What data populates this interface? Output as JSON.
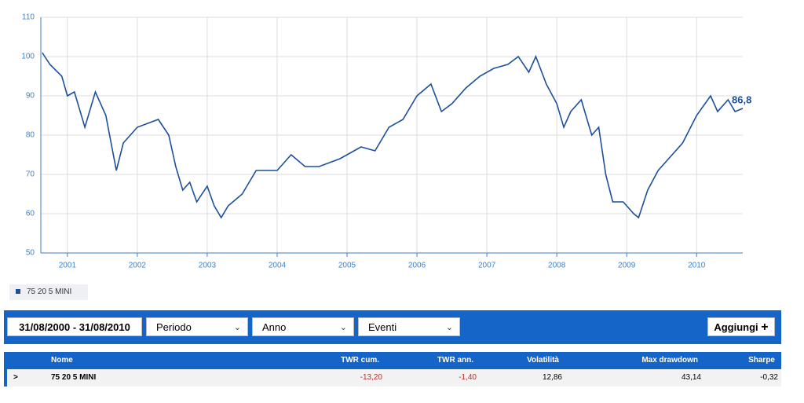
{
  "chart_data": {
    "type": "line",
    "x": [
      2000.64,
      2000.75,
      2000.92,
      2001.0,
      2001.1,
      2001.25,
      2001.4,
      2001.55,
      2001.7,
      2001.8,
      2002.0,
      2002.15,
      2002.3,
      2002.45,
      2002.55,
      2002.65,
      2002.75,
      2002.85,
      2003.0,
      2003.1,
      2003.2,
      2003.3,
      2003.5,
      2003.7,
      2004.0,
      2004.2,
      2004.4,
      2004.6,
      2004.9,
      2005.2,
      2005.4,
      2005.6,
      2005.8,
      2006.0,
      2006.2,
      2006.35,
      2006.5,
      2006.7,
      2006.9,
      2007.1,
      2007.3,
      2007.45,
      2007.6,
      2007.7,
      2007.85,
      2008.0,
      2008.1,
      2008.2,
      2008.35,
      2008.5,
      2008.6,
      2008.7,
      2008.8,
      2008.95,
      2009.1,
      2009.17,
      2009.3,
      2009.45,
      2009.6,
      2009.8,
      2010.0,
      2010.2,
      2010.3,
      2010.45,
      2010.55,
      2010.66
    ],
    "series": [
      {
        "name": "75 20 5 MINI",
        "color": "#1c4f9c",
        "values": [
          101,
          98,
          95,
          90,
          91,
          82,
          91,
          85,
          71,
          78,
          82,
          83,
          84,
          80,
          72,
          66,
          68,
          63,
          67,
          62,
          59,
          62,
          65,
          71,
          71,
          75,
          72,
          72,
          74,
          77,
          76,
          82,
          84,
          90,
          93,
          86,
          88,
          92,
          95,
          97,
          98,
          100,
          96,
          100,
          93,
          88,
          82,
          86,
          89,
          80,
          82,
          70,
          63,
          63,
          60,
          59,
          66,
          71,
          74,
          78,
          85,
          90,
          86,
          89,
          86,
          86.8
        ],
        "value_labels": [
          null,
          null,
          null,
          null,
          null,
          null,
          null,
          null,
          null,
          null,
          null,
          null,
          null,
          null,
          null,
          null,
          null,
          null,
          null,
          null,
          null,
          null,
          null,
          null,
          null,
          null,
          null,
          null,
          null,
          null,
          null,
          null,
          null,
          null,
          null,
          null,
          null,
          null,
          null,
          null,
          null,
          null,
          null,
          null,
          null,
          null,
          null,
          null,
          null,
          null,
          null,
          null,
          null,
          null,
          null,
          null,
          null,
          null,
          null,
          null,
          null,
          null,
          null,
          null,
          null,
          "86,8"
        ]
      }
    ],
    "xlim": [
      2000.62,
      2010.66
    ],
    "xticks": [
      2001,
      2002,
      2003,
      2004,
      2005,
      2006,
      2007,
      2008,
      2009,
      2010
    ],
    "ylim": [
      50,
      110
    ],
    "yticks": [
      50,
      60,
      70,
      80,
      90,
      100,
      110
    ],
    "grid": true
  },
  "toolbar": {
    "date_range": "31/08/2000 - 31/08/2010",
    "dropdowns": [
      "Periodo",
      "Anno",
      "Eventi"
    ],
    "button": "Aggiungi"
  },
  "table": {
    "columns": [
      "Nome",
      "TWR cum.",
      "TWR ann.",
      "Volatilità",
      "Max drawdown",
      "Sharpe"
    ],
    "rows": [
      [
        "75 20 5 MINI",
        "-13,20",
        "-1,40",
        "12,86",
        "43,14",
        "-0,32"
      ]
    ]
  }
}
